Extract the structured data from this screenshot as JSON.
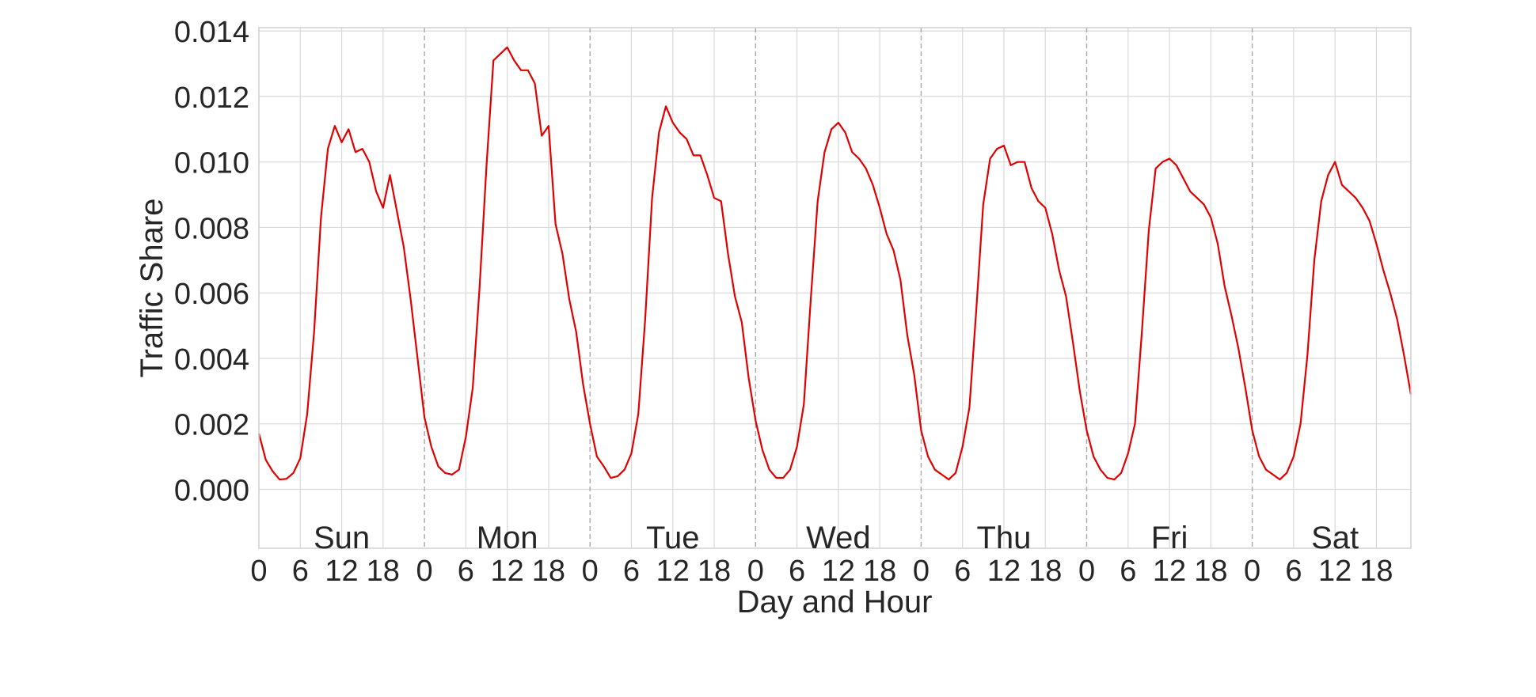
{
  "chart_data": {
    "type": "line",
    "title": "",
    "xlabel": "Day and Hour",
    "ylabel": "Traffic Share",
    "ylim": [
      -0.0018,
      0.0141
    ],
    "yticks": [
      0.0,
      0.002,
      0.004,
      0.006,
      0.008,
      0.01,
      0.012,
      0.014
    ],
    "ytick_labels": [
      "0.000",
      "0.002",
      "0.004",
      "0.006",
      "0.008",
      "0.010",
      "0.012",
      "0.014"
    ],
    "xlim": [
      0,
      167
    ],
    "days": [
      "Sun",
      "Mon",
      "Tue",
      "Wed",
      "Thu",
      "Fri",
      "Sat"
    ],
    "hour_ticks": [
      0,
      6,
      12,
      18
    ],
    "hour_tick_labels": [
      "0",
      "6",
      "12",
      "18"
    ],
    "grid": true,
    "line_color": "#e00000",
    "series": [
      {
        "values": [
          0.0017,
          0.0009,
          0.00055,
          0.0003,
          0.00032,
          0.0005,
          0.00095,
          0.0023,
          0.0048,
          0.0083,
          0.0104,
          0.0111,
          0.0106,
          0.011,
          0.0103,
          0.0104,
          0.01,
          0.0091,
          0.0086,
          0.0096,
          0.0085,
          0.0074,
          0.0058,
          0.004,
          0.0022,
          0.0013,
          0.0007,
          0.0005,
          0.00045,
          0.0006,
          0.0016,
          0.0031,
          0.0062,
          0.0099,
          0.0131,
          0.0133,
          0.0135,
          0.0131,
          0.0128,
          0.0128,
          0.0124,
          0.0108,
          0.0111,
          0.0081,
          0.0072,
          0.0058,
          0.0048,
          0.0032,
          0.002,
          0.001,
          0.0007,
          0.00035,
          0.0004,
          0.0006,
          0.0011,
          0.0023,
          0.0052,
          0.0089,
          0.0109,
          0.0117,
          0.0112,
          0.0109,
          0.0107,
          0.0102,
          0.0102,
          0.0096,
          0.0089,
          0.0088,
          0.0072,
          0.0059,
          0.0051,
          0.0034,
          0.0021,
          0.0012,
          0.0006,
          0.00035,
          0.00035,
          0.0006,
          0.0013,
          0.0026,
          0.0058,
          0.0088,
          0.0103,
          0.011,
          0.0112,
          0.0109,
          0.0103,
          0.0101,
          0.0098,
          0.0093,
          0.0086,
          0.0078,
          0.0073,
          0.0064,
          0.0047,
          0.0035,
          0.0018,
          0.001,
          0.0006,
          0.00045,
          0.0003,
          0.0005,
          0.0013,
          0.0025,
          0.0055,
          0.0087,
          0.0101,
          0.0104,
          0.0105,
          0.0099,
          0.01,
          0.01,
          0.0092,
          0.0088,
          0.0086,
          0.0078,
          0.0067,
          0.0059,
          0.0045,
          0.003,
          0.0018,
          0.001,
          0.0006,
          0.00035,
          0.0003,
          0.0005,
          0.0011,
          0.002,
          0.0048,
          0.0079,
          0.0098,
          0.01,
          0.0101,
          0.0099,
          0.0095,
          0.0091,
          0.0089,
          0.0087,
          0.0083,
          0.0075,
          0.0062,
          0.0053,
          0.0043,
          0.0031,
          0.0018,
          0.001,
          0.0006,
          0.00045,
          0.0003,
          0.0005,
          0.001,
          0.002,
          0.0041,
          0.007,
          0.0088,
          0.0096,
          0.01,
          0.0093,
          0.0091,
          0.0089,
          0.0086,
          0.0082,
          0.0075,
          0.0067,
          0.006,
          0.0052,
          0.0041,
          0.0029
        ]
      }
    ]
  }
}
